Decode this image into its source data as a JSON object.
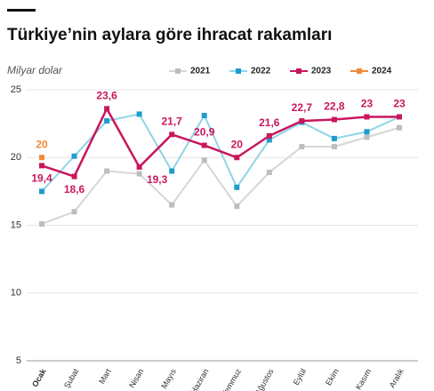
{
  "chart_data": {
    "type": "line",
    "title": "Türkiye’nin aylara göre ihracat rakamları",
    "y_label": "Milyar dolar",
    "categories": [
      "Ocak",
      "Şubat",
      "Mart",
      "Nisan",
      "Mayıs",
      "Haziran",
      "Temmuz",
      "Ağustos",
      "Eylül",
      "Ekim",
      "Kasım",
      "Aralık"
    ],
    "ylim": [
      5,
      25
    ],
    "yticks": [
      5,
      10,
      15,
      20,
      25
    ],
    "grid": true,
    "legend": "top",
    "series": [
      {
        "name": "2021",
        "color": "#d6d6d6",
        "marker_color": "#bdbdbd",
        "values": [
          15.1,
          16.0,
          19.0,
          18.8,
          16.5,
          19.8,
          16.4,
          18.9,
          20.8,
          20.8,
          21.5,
          22.2
        ]
      },
      {
        "name": "2022",
        "color": "#8fd4e8",
        "marker_color": "#1f9ccc",
        "values": [
          17.5,
          20.1,
          22.7,
          23.2,
          19.0,
          23.1,
          17.8,
          21.3,
          22.6,
          21.4,
          21.9,
          23.0
        ]
      },
      {
        "name": "2023",
        "color": "#c8175d",
        "marker_color": "#c8175d",
        "values": [
          19.4,
          18.6,
          23.6,
          19.3,
          21.7,
          20.9,
          20,
          21.6,
          22.7,
          22.8,
          23,
          23
        ],
        "value_labels": [
          "19,4",
          "18,6",
          "23,6",
          "19,3",
          "21,7",
          "20,9",
          "20",
          "21,6",
          "22,7",
          "22,8",
          "23",
          "23"
        ]
      },
      {
        "name": "2024",
        "color": "#f08a3c",
        "marker_color": "#f08a3c",
        "values": [
          20,
          null,
          null,
          null,
          null,
          null,
          null,
          null,
          null,
          null,
          null,
          null
        ],
        "value_labels": [
          "20",
          null,
          null,
          null,
          null,
          null,
          null,
          null,
          null,
          null,
          null,
          null
        ]
      }
    ]
  }
}
